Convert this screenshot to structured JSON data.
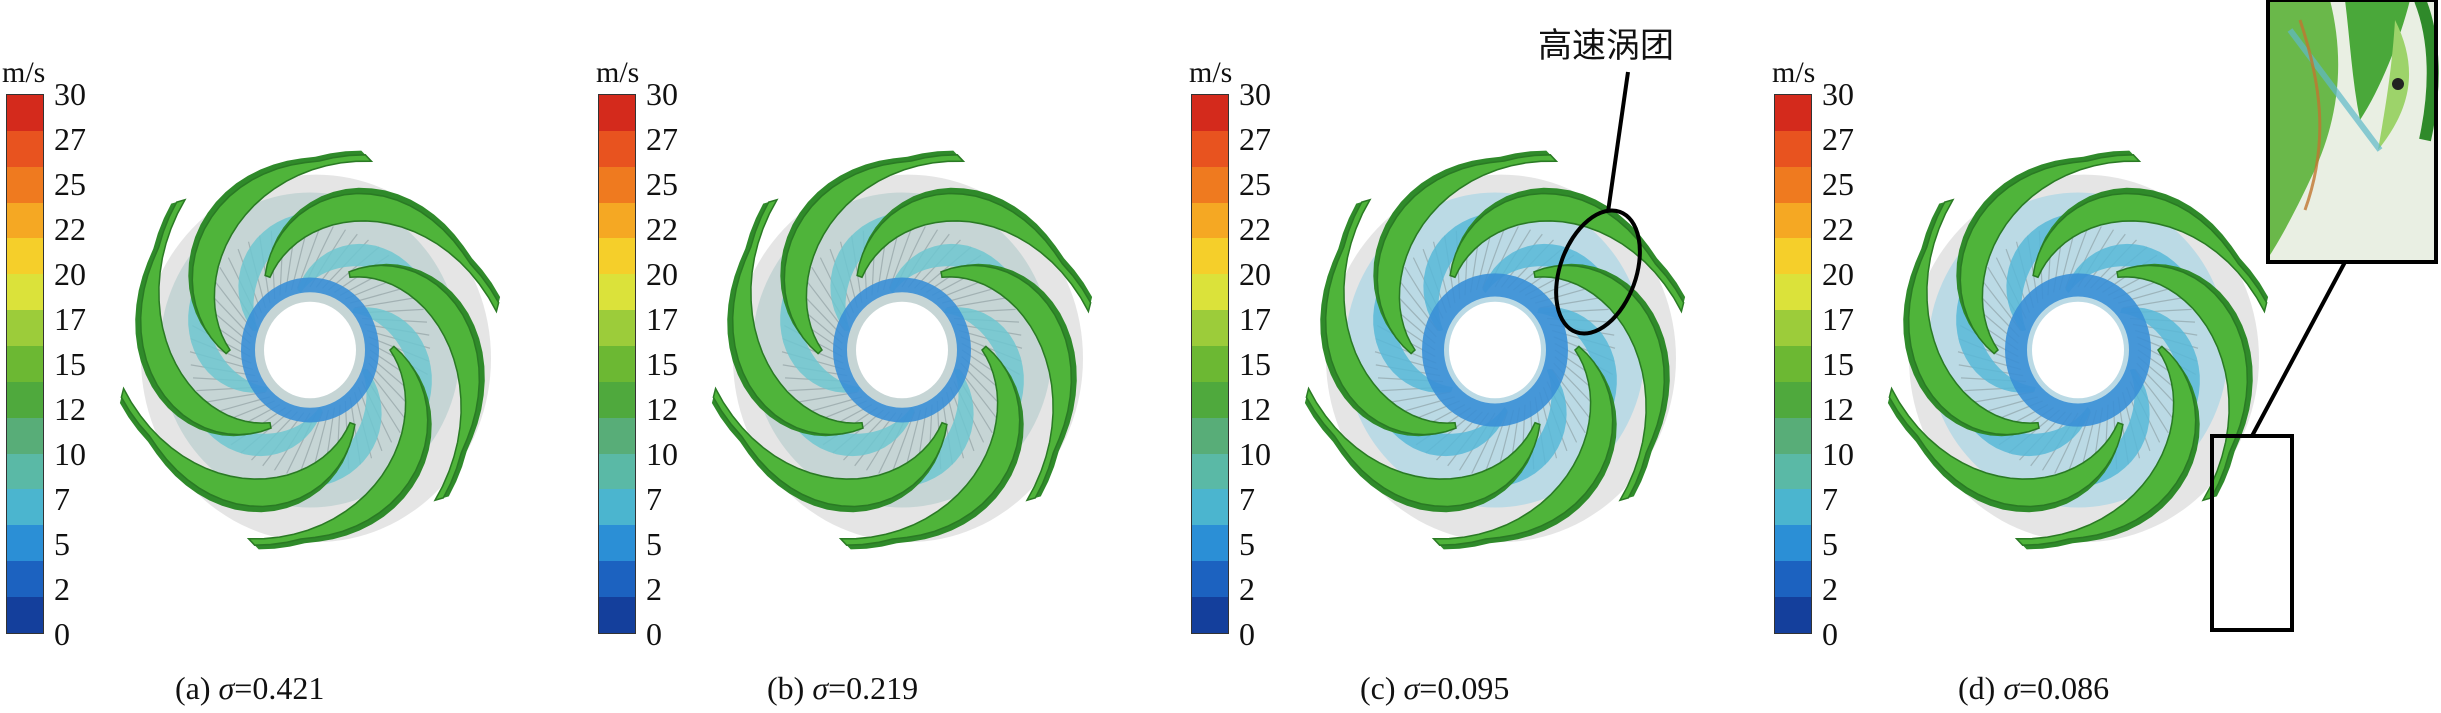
{
  "colorbar": {
    "unit": "m/s",
    "ticks": [
      "30",
      "27",
      "25",
      "22",
      "20",
      "17",
      "15",
      "12",
      "10",
      "7",
      "5",
      "2",
      "0"
    ],
    "colors": [
      "#d42a1c",
      "#e8531f",
      "#ef7a1f",
      "#f5a823",
      "#f5cf2a",
      "#dbe23a",
      "#9ccc3a",
      "#6cb833",
      "#4fa93d",
      "#58ad78",
      "#5ab9a6",
      "#4bb5cf",
      "#2b8fd6",
      "#1c62c0",
      "#143f9c"
    ]
  },
  "panels": [
    {
      "label": "(a) ",
      "sigma_symbol": "σ",
      "value": "=0.421"
    },
    {
      "label": "(b) ",
      "sigma_symbol": "σ",
      "value": "=0.219"
    },
    {
      "label": "(c) ",
      "sigma_symbol": "σ",
      "value": "=0.095"
    },
    {
      "label": "(d) ",
      "sigma_symbol": "σ",
      "value": "=0.086"
    }
  ],
  "annotation": {
    "text": "高速涡团"
  },
  "colors": {
    "blade_green": "#4fb43a",
    "blade_dark": "#2f8a2a",
    "hub_blue": "#3a8fd6",
    "inner_cyan": "#6fc7d0",
    "shadow_gray": "#b5b5b5"
  }
}
